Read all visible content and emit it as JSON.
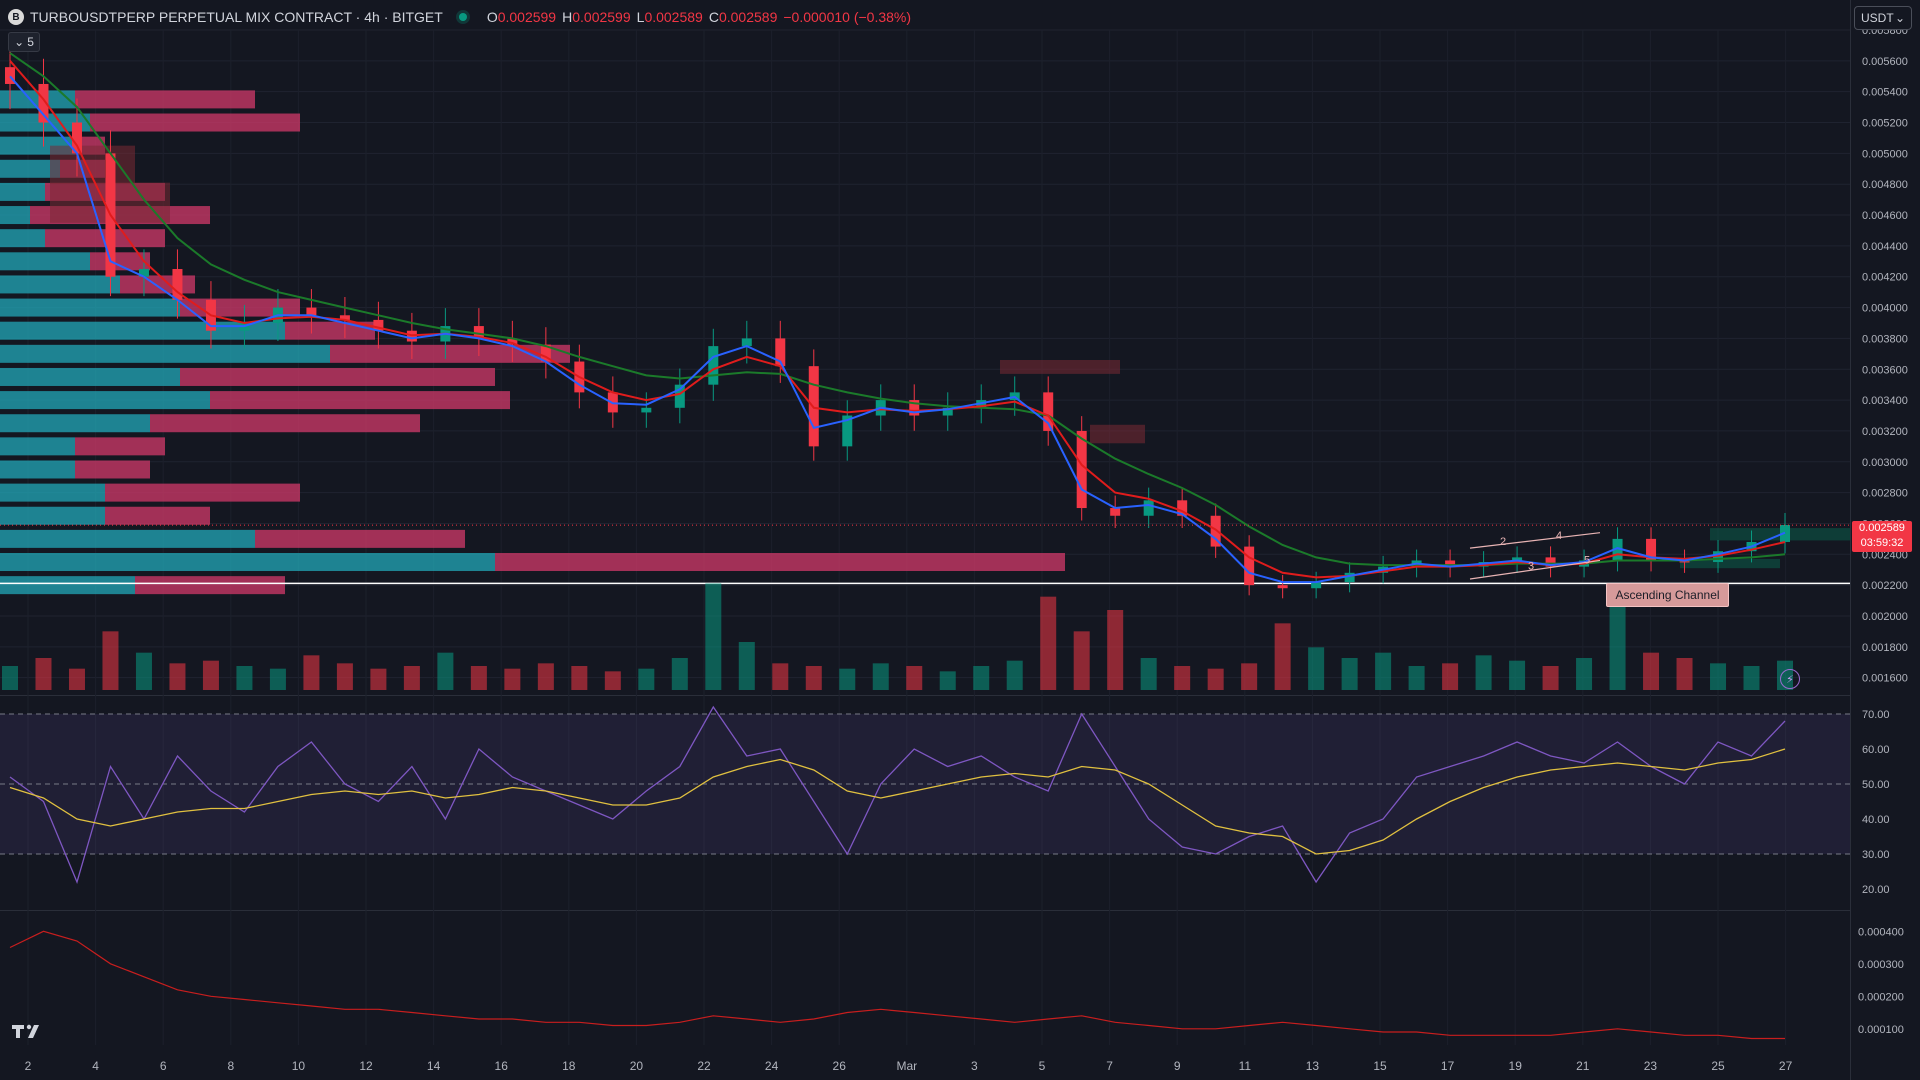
{
  "header": {
    "symbol_icon": "bitget-logo-icon",
    "title": "TURBOUSDTPERP PERPETUAL MIX CONTRACT · 4h · BITGET",
    "status": "market-open",
    "ohlc": {
      "o_label": "O",
      "o": "0.002599",
      "h_label": "H",
      "h": "0.002599",
      "l_label": "L",
      "l": "0.002589",
      "c_label": "C",
      "c": "0.002589",
      "change": "−0.000010 (−0.38%)"
    },
    "indicator_toggle": "5"
  },
  "currency_selector": {
    "value": "USDT"
  },
  "price_tag": {
    "price": "0.002589",
    "countdown": "03:59:32"
  },
  "annotation": {
    "label": "Ascending Channel",
    "points": [
      "2",
      "3",
      "4",
      "5"
    ]
  },
  "colors": {
    "background": "#141721",
    "up": "#089981",
    "down": "#f23645",
    "ema_fast": "#2962ff",
    "ema_mid": "#e01c1c",
    "ema_slow": "#1b7a2a",
    "rsi": "#7e57c2",
    "rsi_ma": "#e0c040",
    "lower": "#c81e1e",
    "vp_up": "#22a8b8",
    "vp_down": "#d13a6a"
  },
  "chart_data": {
    "type": "line",
    "price_axis": {
      "ticks": [
        "0.005800",
        "0.005600",
        "0.005400",
        "0.005200",
        "0.005000",
        "0.004800",
        "0.004600",
        "0.004400",
        "0.004200",
        "0.004000",
        "0.003800",
        "0.003600",
        "0.003400",
        "0.003200",
        "0.003000",
        "0.002800",
        "0.002600",
        "0.002400",
        "0.002200",
        "0.002000",
        "0.001800",
        "0.001600"
      ],
      "range": [
        0.00152,
        0.0058
      ]
    },
    "rsi_axis": {
      "ticks": [
        "70.00",
        "60.00",
        "50.00",
        "40.00",
        "30.00",
        "20.00"
      ],
      "range": [
        14,
        74
      ]
    },
    "lower_axis": {
      "ticks": [
        "0.000400",
        "0.000300",
        "0.000200",
        "0.000100"
      ],
      "range": [
        5e-05,
        0.00045
      ]
    },
    "time_axis": {
      "ticks": [
        "2",
        "4",
        "6",
        "8",
        "10",
        "12",
        "14",
        "16",
        "18",
        "20",
        "22",
        "24",
        "26",
        "Mar",
        "3",
        "5",
        "7",
        "9",
        "11",
        "13",
        "15",
        "17",
        "19",
        "21",
        "23",
        "25",
        "27"
      ]
    },
    "price": {
      "t": [
        0,
        1,
        2,
        3,
        4,
        5,
        6,
        7,
        8,
        9,
        10,
        11,
        12,
        13,
        14,
        15,
        16,
        17,
        18,
        19,
        20,
        21,
        22,
        23,
        24,
        25,
        26,
        27,
        28,
        29,
        30,
        31,
        32,
        33,
        34,
        35,
        36,
        37,
        38,
        39,
        40,
        41,
        42,
        43,
        44,
        45,
        46,
        47,
        48,
        49,
        50,
        51,
        52,
        53
      ],
      "close": [
        0.00545,
        0.0052,
        0.005,
        0.0042,
        0.00425,
        0.00405,
        0.00385,
        0.0039,
        0.004,
        0.00395,
        0.00392,
        0.00385,
        0.00378,
        0.00388,
        0.0038,
        0.00376,
        0.00365,
        0.00345,
        0.00332,
        0.00335,
        0.0035,
        0.00375,
        0.0038,
        0.00362,
        0.0031,
        0.0033,
        0.0034,
        0.0033,
        0.00335,
        0.0034,
        0.00345,
        0.0032,
        0.0027,
        0.00265,
        0.00275,
        0.00265,
        0.00245,
        0.0022,
        0.00218,
        0.00222,
        0.00228,
        0.00232,
        0.00236,
        0.00232,
        0.00235,
        0.00238,
        0.00232,
        0.00236,
        0.0025,
        0.00236,
        0.00235,
        0.00242,
        0.00248,
        0.00259
      ],
      "ema_fast": [
        0.0055,
        0.00525,
        0.005,
        0.0043,
        0.0042,
        0.00405,
        0.00388,
        0.00388,
        0.00395,
        0.00395,
        0.0039,
        0.00385,
        0.0038,
        0.00383,
        0.0038,
        0.00375,
        0.00365,
        0.0035,
        0.00338,
        0.00337,
        0.00347,
        0.00368,
        0.00375,
        0.00365,
        0.00322,
        0.00327,
        0.00335,
        0.00332,
        0.00334,
        0.00338,
        0.00342,
        0.00325,
        0.00282,
        0.0027,
        0.00272,
        0.00266,
        0.0025,
        0.00228,
        0.00222,
        0.00222,
        0.00226,
        0.0023,
        0.00234,
        0.00232,
        0.00234,
        0.00236,
        0.00233,
        0.00235,
        0.00244,
        0.00238,
        0.00236,
        0.0024,
        0.00245,
        0.00254
      ],
      "ema_mid": [
        0.0056,
        0.00535,
        0.00505,
        0.0046,
        0.0043,
        0.0041,
        0.00395,
        0.0039,
        0.00393,
        0.00394,
        0.00392,
        0.00387,
        0.00382,
        0.00383,
        0.00381,
        0.00377,
        0.00368,
        0.00355,
        0.00345,
        0.0034,
        0.00344,
        0.0036,
        0.00368,
        0.00362,
        0.00335,
        0.00332,
        0.00334,
        0.00333,
        0.00334,
        0.00336,
        0.00339,
        0.0033,
        0.00298,
        0.0028,
        0.00276,
        0.00268,
        0.00256,
        0.00238,
        0.00228,
        0.00225,
        0.00226,
        0.00229,
        0.00232,
        0.00232,
        0.00233,
        0.00235,
        0.00233,
        0.00234,
        0.0024,
        0.00238,
        0.00237,
        0.00239,
        0.00243,
        0.00248
      ],
      "ema_slow": [
        0.00565,
        0.0055,
        0.0053,
        0.005,
        0.0047,
        0.00445,
        0.00428,
        0.00418,
        0.0041,
        0.00405,
        0.004,
        0.00395,
        0.0039,
        0.00386,
        0.00383,
        0.0038,
        0.00375,
        0.00368,
        0.00362,
        0.00356,
        0.00354,
        0.00356,
        0.00358,
        0.00357,
        0.0035,
        0.00345,
        0.00341,
        0.00338,
        0.00336,
        0.00335,
        0.00334,
        0.0033,
        0.00315,
        0.00302,
        0.00292,
        0.00283,
        0.00272,
        0.00258,
        0.00246,
        0.00238,
        0.00234,
        0.00233,
        0.00233,
        0.00233,
        0.00233,
        0.00234,
        0.00234,
        0.00234,
        0.00236,
        0.00236,
        0.00236,
        0.00237,
        0.00238,
        0.0024
      ]
    },
    "volume": {
      "values": [
        9,
        12,
        8,
        22,
        14,
        10,
        11,
        9,
        8,
        13,
        10,
        8,
        9,
        14,
        9,
        8,
        10,
        9,
        7,
        8,
        12,
        40,
        18,
        10,
        9,
        8,
        10,
        9,
        7,
        9,
        11,
        35,
        22,
        30,
        12,
        9,
        8,
        10,
        25,
        16,
        12,
        14,
        9,
        10,
        13,
        11,
        9,
        12,
        38,
        14,
        12,
        10,
        9,
        11
      ]
    },
    "rsi": {
      "values": [
        52,
        45,
        22,
        55,
        40,
        58,
        48,
        42,
        55,
        62,
        50,
        45,
        55,
        40,
        60,
        52,
        48,
        44,
        40,
        48,
        55,
        72,
        58,
        60,
        45,
        30,
        50,
        60,
        55,
        58,
        52,
        48,
        70,
        55,
        40,
        32,
        30,
        35,
        38,
        22,
        36,
        40,
        52,
        55,
        58,
        62,
        58,
        56,
        62,
        55,
        50,
        62,
        58,
        68
      ],
      "ma": [
        49,
        46,
        40,
        38,
        40,
        42,
        43,
        43,
        45,
        47,
        48,
        47,
        48,
        46,
        47,
        49,
        48,
        46,
        44,
        44,
        46,
        52,
        55,
        57,
        54,
        48,
        46,
        48,
        50,
        52,
        53,
        52,
        55,
        54,
        50,
        44,
        38,
        36,
        35,
        30,
        31,
        34,
        40,
        45,
        49,
        52,
        54,
        55,
        56,
        55,
        54,
        56,
        57,
        60
      ]
    },
    "lower": {
      "values": [
        0.00035,
        0.0004,
        0.00037,
        0.0003,
        0.00026,
        0.00022,
        0.0002,
        0.00019,
        0.00018,
        0.00017,
        0.00016,
        0.00016,
        0.00015,
        0.00014,
        0.00013,
        0.00013,
        0.00012,
        0.00012,
        0.00011,
        0.00011,
        0.00012,
        0.00014,
        0.00013,
        0.00012,
        0.00013,
        0.00015,
        0.00016,
        0.00015,
        0.00014,
        0.00013,
        0.00012,
        0.00013,
        0.00014,
        0.00012,
        0.00011,
        0.0001,
        0.0001,
        0.00011,
        0.00012,
        0.00011,
        0.0001,
        9e-05,
        9e-05,
        8e-05,
        8e-05,
        8e-05,
        8e-05,
        9e-05,
        0.0001,
        9e-05,
        8e-05,
        8e-05,
        7e-05,
        7e-05
      ]
    },
    "volume_profile": {
      "rows": [
        {
          "price": 0.00535,
          "up": 0.05,
          "down": 0.12
        },
        {
          "price": 0.0052,
          "up": 0.06,
          "down": 0.14
        },
        {
          "price": 0.00505,
          "up": 0.05,
          "down": 0.02
        },
        {
          "price": 0.0049,
          "up": 0.04,
          "down": 0.03
        },
        {
          "price": 0.00475,
          "up": 0.03,
          "down": 0.08
        },
        {
          "price": 0.0046,
          "up": 0.02,
          "down": 0.12
        },
        {
          "price": 0.00445,
          "up": 0.03,
          "down": 0.08
        },
        {
          "price": 0.0043,
          "up": 0.06,
          "down": 0.04
        },
        {
          "price": 0.00415,
          "up": 0.08,
          "down": 0.05
        },
        {
          "price": 0.004,
          "up": 0.12,
          "down": 0.08
        },
        {
          "price": 0.00385,
          "up": 0.19,
          "down": 0.06
        },
        {
          "price": 0.0037,
          "up": 0.22,
          "down": 0.16
        },
        {
          "price": 0.00355,
          "up": 0.12,
          "down": 0.21
        },
        {
          "price": 0.0034,
          "up": 0.14,
          "down": 0.2
        },
        {
          "price": 0.00325,
          "up": 0.1,
          "down": 0.18
        },
        {
          "price": 0.0031,
          "up": 0.05,
          "down": 0.06
        },
        {
          "price": 0.00295,
          "up": 0.05,
          "down": 0.05
        },
        {
          "price": 0.0028,
          "up": 0.07,
          "down": 0.13
        },
        {
          "price": 0.00265,
          "up": 0.07,
          "down": 0.07
        },
        {
          "price": 0.0025,
          "up": 0.17,
          "down": 0.14
        },
        {
          "price": 0.00235,
          "up": 0.33,
          "down": 0.38
        },
        {
          "price": 0.0022,
          "up": 0.09,
          "down": 0.1
        }
      ],
      "poc_price": 0.00225
    }
  }
}
